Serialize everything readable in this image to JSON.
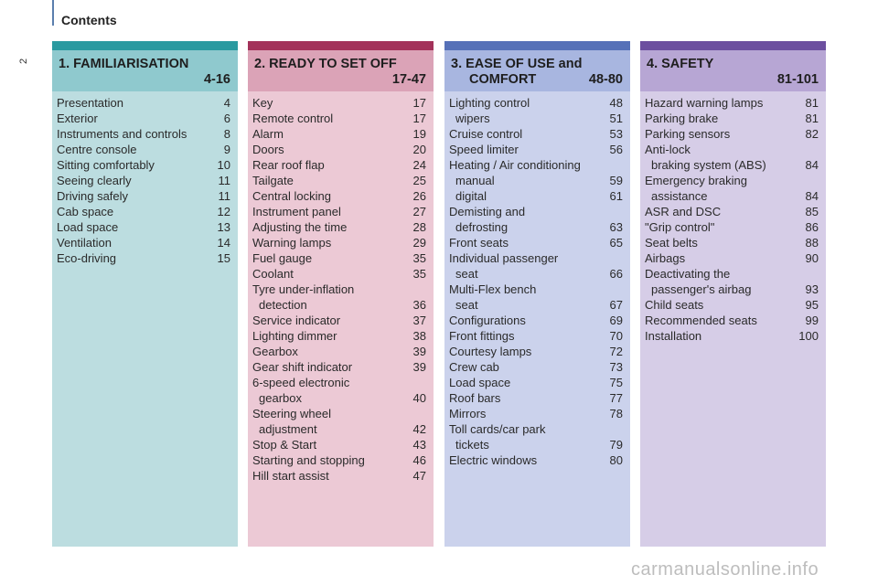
{
  "page_number": "2",
  "header": {
    "title": "Contents"
  },
  "sections": [
    {
      "title": "1. FAMILIARISATION",
      "range": "4-16",
      "items": [
        {
          "label": "Presentation",
          "page": "4"
        },
        {
          "label": "Exterior",
          "page": "6"
        },
        {
          "label": "Instruments and controls",
          "page": "8"
        },
        {
          "label": "Centre console",
          "page": "9"
        },
        {
          "label": "Sitting comfortably",
          "page": "10"
        },
        {
          "label": "Seeing clearly",
          "page": "11"
        },
        {
          "label": "Driving safely",
          "page": "11"
        },
        {
          "label": "Cab space",
          "page": "12"
        },
        {
          "label": "Load space",
          "page": "13"
        },
        {
          "label": "Ventilation",
          "page": "14"
        },
        {
          "label": "Eco-driving",
          "page": "15"
        }
      ]
    },
    {
      "title": "2. READY TO SET OFF",
      "range": "17-47",
      "items": [
        {
          "label": "Key",
          "page": "17"
        },
        {
          "label": "Remote control",
          "page": "17"
        },
        {
          "label": "Alarm",
          "page": "19"
        },
        {
          "label": "Doors",
          "page": "20"
        },
        {
          "label": "Rear roof flap",
          "page": "24"
        },
        {
          "label": "Tailgate",
          "page": "25"
        },
        {
          "label": "Central locking",
          "page": "26"
        },
        {
          "label": "Instrument panel",
          "page": "27"
        },
        {
          "label": "Adjusting the time",
          "page": "28"
        },
        {
          "label": "Warning lamps",
          "page": "29"
        },
        {
          "label": "Fuel gauge",
          "page": "35"
        },
        {
          "label": "Coolant",
          "page": "35"
        },
        {
          "label": "Tyre under-inflation",
          "page": ""
        },
        {
          "label": "detection",
          "page": "36",
          "indent": true
        },
        {
          "label": "Service indicator",
          "page": "37"
        },
        {
          "label": "Lighting dimmer",
          "page": "38"
        },
        {
          "label": "Gearbox",
          "page": "39"
        },
        {
          "label": "Gear shift indicator",
          "page": "39"
        },
        {
          "label": "6-speed electronic",
          "page": ""
        },
        {
          "label": "gearbox",
          "page": "40",
          "indent": true
        },
        {
          "label": "Steering wheel",
          "page": ""
        },
        {
          "label": "adjustment",
          "page": "42",
          "indent": true
        },
        {
          "label": "Stop & Start",
          "page": "43"
        },
        {
          "label": "Starting and stopping",
          "page": "46"
        },
        {
          "label": "Hill start assist",
          "page": "47"
        }
      ]
    },
    {
      "title": "3. EASE OF USE and",
      "title_line2": "COMFORT",
      "range": "48-80",
      "items": [
        {
          "label": "Lighting control",
          "page": "48"
        },
        {
          "label": "wipers",
          "page": "51",
          "indent": true
        },
        {
          "label": "Cruise control",
          "page": "53"
        },
        {
          "label": "Speed limiter",
          "page": "56"
        },
        {
          "label": "Heating / Air conditioning",
          "page": ""
        },
        {
          "label": "manual",
          "page": "59",
          "indent": true
        },
        {
          "label": "digital",
          "page": "61",
          "indent": true
        },
        {
          "label": "Demisting and",
          "page": ""
        },
        {
          "label": "defrosting",
          "page": "63",
          "indent": true
        },
        {
          "label": "Front seats",
          "page": "65"
        },
        {
          "label": "Individual passenger",
          "page": ""
        },
        {
          "label": "seat",
          "page": "66",
          "indent": true
        },
        {
          "label": "Multi-Flex bench",
          "page": ""
        },
        {
          "label": "seat",
          "page": "67",
          "indent": true
        },
        {
          "label": "Configurations",
          "page": "69"
        },
        {
          "label": "Front fittings",
          "page": "70"
        },
        {
          "label": "Courtesy lamps",
          "page": "72"
        },
        {
          "label": "Crew cab",
          "page": "73"
        },
        {
          "label": "Load space",
          "page": "75"
        },
        {
          "label": "Roof bars",
          "page": "77"
        },
        {
          "label": "Mirrors",
          "page": "78"
        },
        {
          "label": "Toll cards/car park",
          "page": ""
        },
        {
          "label": "tickets",
          "page": "79",
          "indent": true
        },
        {
          "label": "Electric windows",
          "page": "80"
        }
      ]
    },
    {
      "title": "4. SAFETY",
      "range": "81-101",
      "items": [
        {
          "label": "Hazard warning lamps",
          "page": "81"
        },
        {
          "label": "Parking brake",
          "page": "81"
        },
        {
          "label": "Parking sensors",
          "page": "82"
        },
        {
          "label": "Anti-lock",
          "page": ""
        },
        {
          "label": "braking system (ABS)",
          "page": "84",
          "indent": true
        },
        {
          "label": "Emergency braking",
          "page": ""
        },
        {
          "label": "assistance",
          "page": "84",
          "indent": true
        },
        {
          "label": "ASR and DSC",
          "page": "85"
        },
        {
          "label": "\"Grip control\"",
          "page": "86"
        },
        {
          "label": "Seat belts",
          "page": "88"
        },
        {
          "label": "Airbags",
          "page": "90"
        },
        {
          "label": "Deactivating the",
          "page": ""
        },
        {
          "label": "passenger's airbag",
          "page": "93",
          "indent": true
        },
        {
          "label": "Child seats",
          "page": "95"
        },
        {
          "label": "Recommended seats",
          "page": "99"
        },
        {
          "label": "Installation",
          "page": "100"
        }
      ]
    }
  ],
  "watermark": "carmanualsonline.info",
  "colors": {
    "familiarisation_accent": "#2a9aa0",
    "ready_accent": "#a3325a",
    "ease_accent": "#5671b8",
    "safety_accent": "#6c4f9f"
  }
}
